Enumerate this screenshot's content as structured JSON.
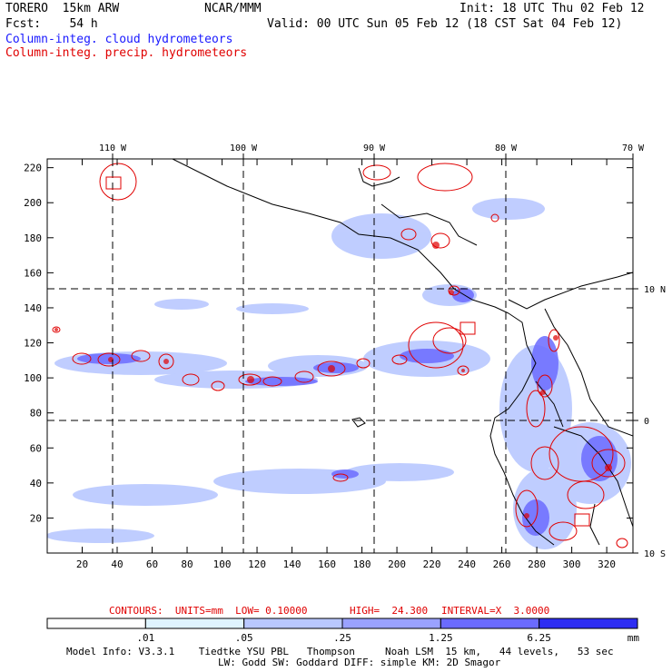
{
  "header": {
    "line1_left": "TORERO  15km ARW",
    "line1_mid": "NCAR/MMM",
    "line1_right": "Init: 18 UTC Thu 02 Feb 12",
    "line2_left": "Fcst:    54 h",
    "line2_right": "Valid: 00 UTC Sun 05 Feb 12 (18 CST Sat 04 Feb 12)",
    "legend_cloud": "Column-integ. cloud hydrometeors",
    "legend_precip": "Column-integ. precip. hydrometeors",
    "color_cloud": "#1a1aff",
    "color_precip": "#e00000"
  },
  "axes": {
    "x_ticks": [
      "20",
      "40",
      "60",
      "80",
      "100",
      "120",
      "140",
      "160",
      "180",
      "200",
      "220",
      "240",
      "260",
      "280",
      "300",
      "320"
    ],
    "y_ticks": [
      "20",
      "40",
      "60",
      "80",
      "100",
      "120",
      "140",
      "160",
      "180",
      "200",
      "220"
    ],
    "lon_labels": [
      "110 W",
      "100 W",
      "90 W",
      "80 W",
      "70 W"
    ],
    "lat_labels": [
      "10 N",
      "0",
      "10 S"
    ]
  },
  "contour_info": {
    "units": "CONTOURS:  UNITS=mm  LOW= 0.10000",
    "high": "HIGH=  24.300",
    "interval": "INTERVAL=X  3.0000"
  },
  "colorbar": {
    "labels": [
      ".01",
      ".05",
      ".25",
      "1.25",
      "6.25"
    ],
    "unit": "mm",
    "colors": [
      "#ffffff",
      "#dff4ff",
      "#b9c8ff",
      "#9aa2ff",
      "#6b6bff",
      "#2d2df2"
    ]
  },
  "footer": {
    "line1": "Model Info: V3.3.1    Tiedtke YSU PBL   Thompson     Noah LSM  15 km,   44 levels,   53 sec",
    "line2": "LW: Godd SW: Goddard DIFF: simple KM: 2D Smagor"
  }
}
